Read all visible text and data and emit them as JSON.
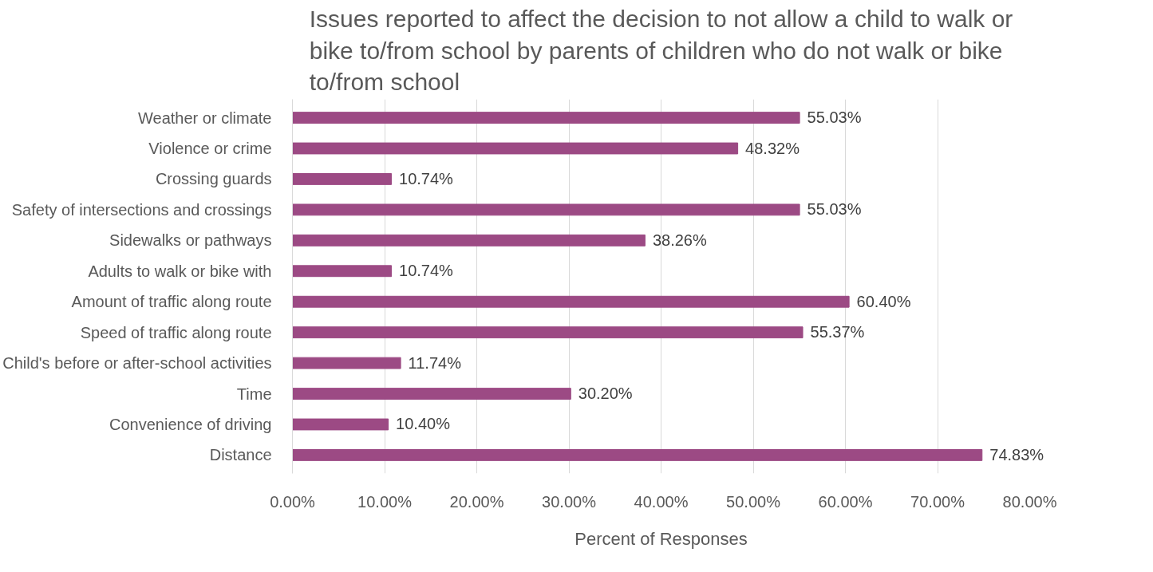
{
  "chart_data": {
    "type": "bar",
    "orientation": "horizontal",
    "title": "Issues reported to affect the decision to not allow a child to walk or bike to/from school by parents of children who do not walk or bike to/from school",
    "xlabel": "Percent of Responses",
    "categories": [
      "Weather or climate",
      "Violence or crime",
      "Crossing guards",
      "Safety of intersections and crossings",
      "Sidewalks or pathways",
      "Adults to walk or bike with",
      "Amount of traffic along route",
      "Speed of traffic along route",
      "Child's before or after-school activities",
      "Time",
      "Convenience of driving",
      "Distance"
    ],
    "values": [
      55.03,
      48.32,
      10.74,
      55.03,
      38.26,
      10.74,
      60.4,
      55.37,
      11.74,
      30.2,
      10.4,
      74.83
    ],
    "value_labels": [
      "55.03%",
      "48.32%",
      "10.74%",
      "55.03%",
      "38.26%",
      "10.74%",
      "60.40%",
      "55.37%",
      "11.74%",
      "30.20%",
      "10.40%",
      "74.83%"
    ],
    "color": "#9c4a84",
    "xlim": [
      0,
      80
    ],
    "xticks": [
      {
        "value": 0,
        "label": "0.00%"
      },
      {
        "value": 10,
        "label": "10.00%"
      },
      {
        "value": 20,
        "label": "20.00%"
      },
      {
        "value": 30,
        "label": "30.00%"
      },
      {
        "value": 40,
        "label": "40.00%"
      },
      {
        "value": 50,
        "label": "50.00%"
      },
      {
        "value": 60,
        "label": "60.00%"
      },
      {
        "value": 70,
        "label": "70.00%"
      },
      {
        "value": 80,
        "label": "80.00%"
      }
    ],
    "grid": "x"
  }
}
